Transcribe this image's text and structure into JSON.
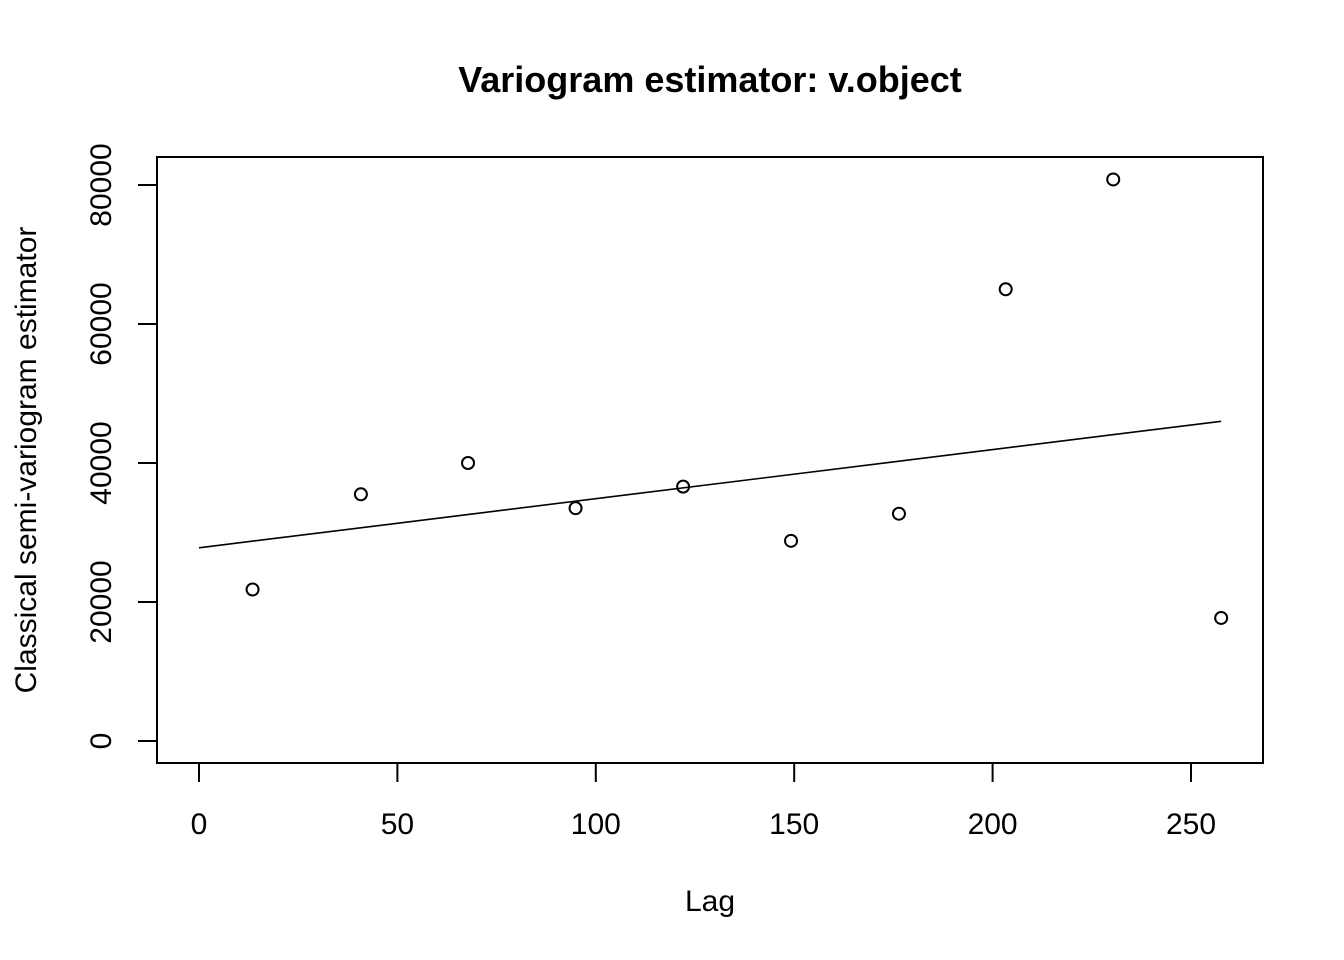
{
  "chart_data": {
    "type": "scatter",
    "title": "Variogram estimator: v.object",
    "xlabel": "Lag",
    "ylabel": "Classical semi-variogram estimator",
    "xlim": [
      0,
      250
    ],
    "ylim": [
      0,
      80000
    ],
    "x_ticks": [
      0,
      50,
      100,
      150,
      200,
      250
    ],
    "y_ticks": [
      0,
      20000,
      40000,
      60000,
      80000
    ],
    "grid": false,
    "box": true,
    "series": [
      {
        "kind": "points",
        "marker": "open-circle",
        "x": [
          13.5,
          40.8,
          67.8,
          94.9,
          122.0,
          149.2,
          176.4,
          203.3,
          230.4,
          257.6
        ],
        "y": [
          21800,
          35500,
          40000,
          33500,
          36600,
          28800,
          32700,
          65000,
          80800,
          17700
        ]
      },
      {
        "kind": "line",
        "x": [
          0,
          257.6
        ],
        "y": [
          27800,
          46000
        ]
      }
    ]
  }
}
